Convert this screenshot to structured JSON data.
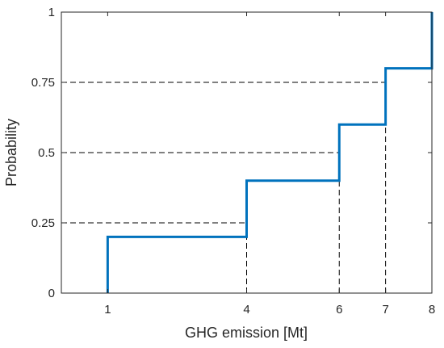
{
  "chart_data": {
    "type": "line",
    "title": "",
    "xlabel": "GHG emission [Mt]",
    "ylabel": "Probability",
    "xlim": [
      0,
      8
    ],
    "ylim": [
      0,
      1
    ],
    "x_ticks": [
      1,
      4,
      6,
      7,
      8
    ],
    "y_ticks": [
      0,
      0.25,
      0.5,
      0.75,
      1
    ],
    "x_tick_labels": [
      "1",
      "4",
      "6",
      "7",
      "8"
    ],
    "y_tick_labels": [
      "0",
      "0.25",
      "0.5",
      "0.75",
      "1"
    ],
    "grid": false,
    "series": [
      {
        "style": "step",
        "color": "#0072bd",
        "x": [
          1,
          1,
          4,
          4,
          6,
          6,
          7,
          7,
          8,
          8
        ],
        "y": [
          0,
          0.2,
          0.2,
          0.4,
          0.4,
          0.6,
          0.6,
          0.8,
          0.8,
          1
        ]
      }
    ],
    "reference_lines": {
      "style": "dashed",
      "color": "#000000",
      "lines": [
        {
          "at_y": 0.25,
          "x_from": 0,
          "x_to": 4
        },
        {
          "at_y": 0.5,
          "x_from": 0,
          "x_to": 6
        },
        {
          "at_y": 0.75,
          "x_from": 0,
          "x_to": 7
        },
        {
          "at_x": 4,
          "y_from": 0,
          "y_to": 0.25
        },
        {
          "at_x": 6,
          "y_from": 0,
          "y_to": 0.5
        },
        {
          "at_x": 7,
          "y_from": 0,
          "y_to": 0.75
        }
      ]
    }
  }
}
